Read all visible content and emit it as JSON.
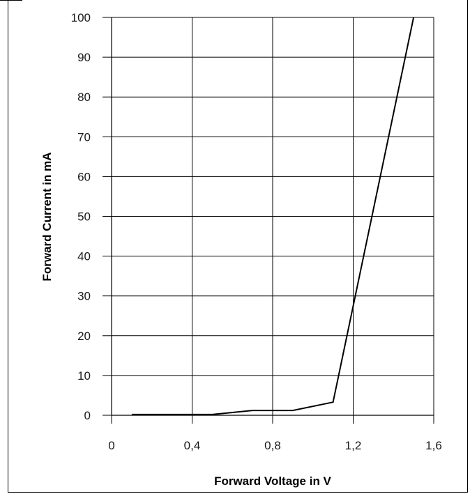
{
  "chart_data": {
    "type": "line",
    "title": "",
    "xlabel": "Forward Voltage in V",
    "ylabel": "Forward Current in mA",
    "xlim": [
      0,
      1.6
    ],
    "ylim": [
      0,
      100
    ],
    "grid": true,
    "x_ticks": [
      0,
      0.4,
      0.8,
      1.2,
      1.6
    ],
    "x_tick_labels": [
      "0",
      "0,4",
      "0,8",
      "1,2",
      "1,6"
    ],
    "y_ticks": [
      0,
      10,
      20,
      30,
      40,
      50,
      60,
      70,
      80,
      90,
      100
    ],
    "y_tick_labels": [
      "0",
      "10",
      "20",
      "30",
      "40",
      "50",
      "60",
      "70",
      "80",
      "90",
      "100"
    ],
    "series": [
      {
        "x": [
          0.1,
          0.5,
          0.7,
          0.9,
          1.1,
          1.5
        ],
        "y": [
          0.2,
          0.2,
          1.2,
          1.2,
          3.3,
          100
        ],
        "color": "#000000"
      }
    ]
  }
}
